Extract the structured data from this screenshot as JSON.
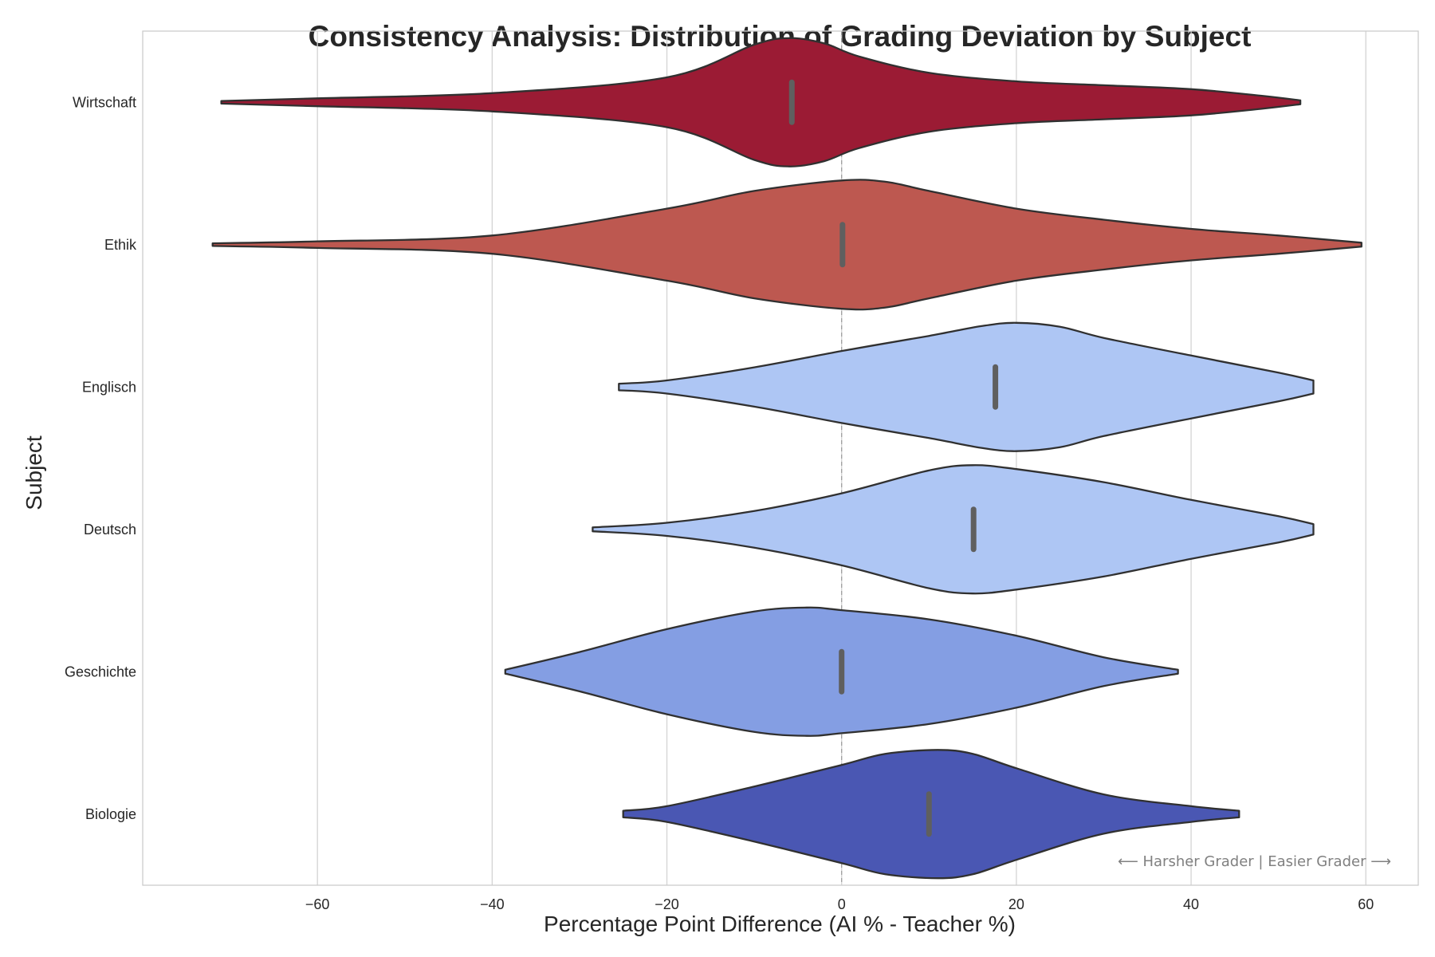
{
  "chart_data": {
    "type": "violin",
    "orientation": "horizontal",
    "title": "Consistency Analysis: Distribution of Grading Deviation by Subject",
    "xlabel": "Percentage Point Difference (AI % - Teacher %)",
    "ylabel": "Subject",
    "xlim": [
      -80,
      66
    ],
    "xticks": [
      -60,
      -40,
      -20,
      0,
      20,
      40,
      60
    ],
    "xtick_labels": [
      "−60",
      "−40",
      "−20",
      "0",
      "20",
      "40",
      "60"
    ],
    "grid": "vertical",
    "reference_line": 0,
    "annotation": "⟵ Harsher Grader | Easier Grader ⟶",
    "subjects": [
      {
        "name": "Wirtschaft",
        "color": "#9b1b34",
        "median": -5.7,
        "density": [
          [
            -71,
            0.02
          ],
          [
            -60,
            0.06
          ],
          [
            -40,
            0.14
          ],
          [
            -20,
            0.38
          ],
          [
            -10,
            0.88
          ],
          [
            -6,
            0.98
          ],
          [
            -2,
            0.9
          ],
          [
            2,
            0.7
          ],
          [
            10,
            0.45
          ],
          [
            20,
            0.32
          ],
          [
            30,
            0.26
          ],
          [
            40,
            0.2
          ],
          [
            48,
            0.1
          ],
          [
            52.5,
            0.03
          ]
        ]
      },
      {
        "name": "Ethik",
        "color": "#bd5850",
        "median": 0.1,
        "density": [
          [
            -72,
            0.02
          ],
          [
            -60,
            0.05
          ],
          [
            -40,
            0.14
          ],
          [
            -20,
            0.55
          ],
          [
            -10,
            0.82
          ],
          [
            0,
            0.98
          ],
          [
            5,
            0.96
          ],
          [
            10,
            0.82
          ],
          [
            20,
            0.55
          ],
          [
            30,
            0.38
          ],
          [
            40,
            0.24
          ],
          [
            50,
            0.14
          ],
          [
            59.5,
            0.03
          ]
        ]
      },
      {
        "name": "Englisch",
        "color": "#aec6f4",
        "median": 17.6,
        "density": [
          [
            -25.5,
            0.05
          ],
          [
            -20,
            0.1
          ],
          [
            -10,
            0.3
          ],
          [
            0,
            0.55
          ],
          [
            10,
            0.78
          ],
          [
            16,
            0.93
          ],
          [
            20,
            0.98
          ],
          [
            25,
            0.92
          ],
          [
            30,
            0.75
          ],
          [
            40,
            0.48
          ],
          [
            50,
            0.22
          ],
          [
            54,
            0.1
          ]
        ]
      },
      {
        "name": "Deutsch",
        "color": "#aec6f4",
        "median": 15.1,
        "density": [
          [
            -28.5,
            0.03
          ],
          [
            -20,
            0.1
          ],
          [
            -10,
            0.28
          ],
          [
            0,
            0.55
          ],
          [
            10,
            0.9
          ],
          [
            15,
            0.98
          ],
          [
            20,
            0.92
          ],
          [
            30,
            0.72
          ],
          [
            40,
            0.45
          ],
          [
            50,
            0.2
          ],
          [
            54,
            0.08
          ]
        ]
      },
      {
        "name": "Geschichte",
        "color": "#849ee3",
        "median": 0.0,
        "density": [
          [
            -38.5,
            0.03
          ],
          [
            -30,
            0.3
          ],
          [
            -20,
            0.65
          ],
          [
            -10,
            0.92
          ],
          [
            -4,
            0.98
          ],
          [
            0,
            0.94
          ],
          [
            10,
            0.8
          ],
          [
            20,
            0.55
          ],
          [
            30,
            0.22
          ],
          [
            38.5,
            0.03
          ]
        ]
      },
      {
        "name": "Biologie",
        "color": "#4a57b3",
        "median": 10.0,
        "density": [
          [
            -25,
            0.05
          ],
          [
            -20,
            0.12
          ],
          [
            -10,
            0.42
          ],
          [
            0,
            0.75
          ],
          [
            5,
            0.92
          ],
          [
            11,
            0.98
          ],
          [
            15,
            0.92
          ],
          [
            20,
            0.7
          ],
          [
            30,
            0.3
          ],
          [
            40,
            0.12
          ],
          [
            45.5,
            0.05
          ]
        ]
      }
    ]
  }
}
